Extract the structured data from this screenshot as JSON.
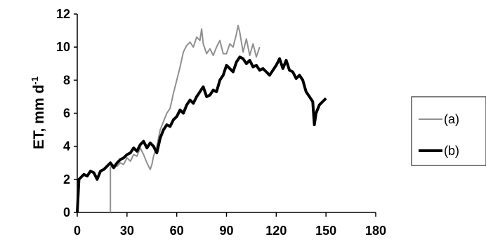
{
  "chart_data": {
    "type": "line",
    "title": "",
    "xlabel": "",
    "ylabel": "ET, mm d",
    "ylabel_superscript": "-1",
    "xlim": [
      0,
      180
    ],
    "ylim": [
      0,
      12
    ],
    "x_ticks": [
      "0",
      "30",
      "60",
      "90",
      "120",
      "150",
      "180"
    ],
    "y_ticks": [
      "0",
      "2",
      "4",
      "6",
      "8",
      "10",
      "12"
    ],
    "grid": false,
    "legend_position": "right",
    "series": [
      {
        "name": "(a)",
        "color": "#909090",
        "x": [
          20,
          20,
          21,
          24,
          26,
          28,
          30,
          32,
          34,
          36,
          38,
          40,
          42,
          44,
          45,
          46,
          48,
          50,
          52,
          54,
          56,
          58,
          60,
          62,
          64,
          66,
          68,
          70,
          72,
          74,
          75,
          76,
          78,
          80,
          82,
          84,
          86,
          88,
          90,
          92,
          94,
          96,
          97,
          98,
          100,
          102,
          104,
          106,
          108,
          110
        ],
        "y": [
          0,
          2.7,
          2.9,
          2.8,
          3.0,
          2.9,
          3.3,
          3.1,
          3.5,
          3.4,
          3.9,
          3.5,
          3.0,
          2.6,
          2.9,
          3.4,
          4.0,
          5.0,
          5.5,
          6.0,
          6.3,
          7.2,
          8.0,
          8.8,
          9.7,
          10.1,
          10.3,
          10.0,
          10.6,
          10.4,
          11.1,
          10.2,
          9.6,
          9.9,
          9.5,
          10.0,
          10.4,
          9.6,
          9.6,
          10.2,
          10.0,
          10.8,
          11.3,
          10.9,
          9.7,
          10.5,
          9.5,
          10.2,
          9.4,
          10.0
        ]
      },
      {
        "name": "(b)",
        "color": "#000000",
        "x": [
          0,
          1,
          2,
          4,
          6,
          8,
          10,
          12,
          14,
          16,
          18,
          20,
          22,
          24,
          26,
          28,
          30,
          32,
          34,
          36,
          38,
          40,
          42,
          44,
          46,
          48,
          50,
          52,
          54,
          56,
          58,
          60,
          62,
          64,
          66,
          68,
          70,
          72,
          74,
          76,
          78,
          80,
          82,
          84,
          86,
          88,
          90,
          92,
          94,
          96,
          98,
          100,
          102,
          104,
          106,
          108,
          110,
          112,
          114,
          116,
          118,
          120,
          122,
          124,
          126,
          128,
          130,
          132,
          134,
          136,
          138,
          140,
          142,
          143,
          144,
          146,
          148,
          150
        ],
        "y": [
          0,
          2.0,
          2.1,
          2.3,
          2.2,
          2.5,
          2.4,
          2.0,
          2.5,
          2.6,
          2.8,
          3.0,
          2.7,
          3.0,
          3.2,
          3.3,
          3.5,
          3.6,
          3.9,
          3.7,
          4.1,
          4.3,
          3.9,
          4.2,
          4.0,
          3.6,
          4.5,
          5.0,
          5.3,
          5.2,
          5.6,
          5.8,
          6.2,
          6.0,
          6.5,
          6.8,
          6.6,
          7.0,
          7.3,
          7.6,
          7.0,
          7.1,
          7.4,
          7.3,
          8.0,
          8.3,
          8.9,
          8.7,
          8.5,
          9.1,
          9.4,
          9.3,
          9.0,
          9.2,
          8.8,
          8.9,
          8.6,
          8.7,
          8.5,
          8.3,
          8.6,
          8.9,
          9.3,
          8.7,
          9.2,
          8.6,
          8.5,
          8.1,
          8.3,
          8.0,
          7.3,
          7.0,
          6.7,
          5.3,
          6.0,
          6.5,
          6.7,
          6.9
        ]
      }
    ]
  }
}
